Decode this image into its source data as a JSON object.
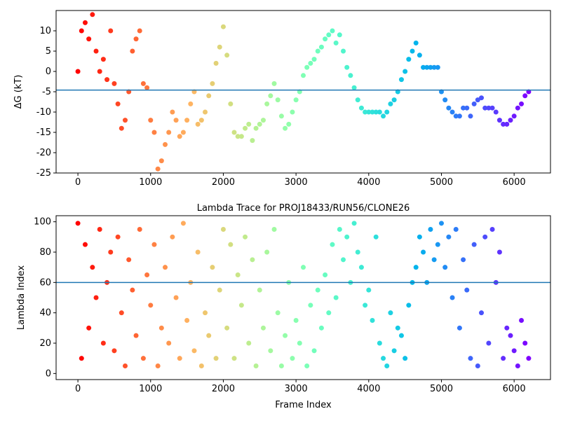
{
  "chart_data": [
    {
      "type": "scatter",
      "y_label": "ΔG (kT)",
      "colormap": "rainbow_r",
      "hline": -4.6,
      "hline_color": "#1f77b4",
      "xlim": [
        -300,
        6500
      ],
      "xticks": [
        0,
        1000,
        2000,
        3000,
        4000,
        5000,
        6000
      ],
      "ylim": [
        -25,
        15
      ],
      "yticks": [
        -25,
        -20,
        -15,
        -10,
        -5,
        0,
        5,
        10
      ],
      "x": [
        0,
        50,
        100,
        150,
        200,
        250,
        300,
        350,
        400,
        450,
        500,
        550,
        600,
        650,
        700,
        750,
        800,
        850,
        900,
        950,
        1000,
        1050,
        1100,
        1150,
        1200,
        1250,
        1300,
        1350,
        1400,
        1450,
        1500,
        1550,
        1600,
        1650,
        1700,
        1750,
        1800,
        1850,
        1900,
        1950,
        2000,
        2050,
        2100,
        2150,
        2200,
        2250,
        2300,
        2350,
        2400,
        2450,
        2500,
        2550,
        2600,
        2650,
        2700,
        2750,
        2800,
        2850,
        2900,
        2950,
        3000,
        3050,
        3100,
        3150,
        3200,
        3250,
        3300,
        3350,
        3400,
        3450,
        3500,
        3550,
        3600,
        3650,
        3700,
        3750,
        3800,
        3850,
        3900,
        3950,
        4000,
        4050,
        4100,
        4150,
        4200,
        4250,
        4300,
        4350,
        4400,
        4450,
        4500,
        4550,
        4600,
        4650,
        4700,
        4750,
        4800,
        4850,
        4900,
        4950,
        5000,
        5050,
        5100,
        5150,
        5200,
        5250,
        5300,
        5350,
        5400,
        5450,
        5500,
        5550,
        5600,
        5650,
        5700,
        5750,
        5800,
        5850,
        5900,
        5950,
        6000,
        6050,
        6100,
        6150,
        6200
      ],
      "values": [
        0,
        10,
        12,
        8,
        14,
        5,
        0,
        3,
        -2,
        10,
        -3,
        -8,
        -14,
        -12,
        -5,
        5,
        8,
        10,
        -3,
        -4,
        -12,
        -15,
        -24,
        -22,
        -18,
        -15,
        -10,
        -12,
        -16,
        -15,
        -12,
        -8,
        -5,
        -13,
        -12,
        -10,
        -6,
        -3,
        2,
        6,
        11,
        4,
        -8,
        -15,
        -16,
        -16,
        -14,
        -13,
        -17,
        -14,
        -13,
        -12,
        -8,
        -6,
        -3,
        -7,
        -11,
        -14,
        -13,
        -10,
        -7,
        -5,
        -1,
        1,
        2,
        3,
        5,
        6,
        8,
        9,
        10,
        7,
        9,
        5,
        1,
        -1,
        -4,
        -7,
        -9,
        -10,
        -10,
        -10,
        -10,
        -10,
        -11,
        -10,
        -8,
        -7,
        -5,
        -2,
        0,
        3,
        5,
        7,
        4,
        1,
        1,
        1,
        1,
        1,
        -5,
        -7,
        -9,
        -10,
        -11,
        -11,
        -9,
        -9,
        -11,
        -8,
        -7,
        -6.5,
        -9,
        -9,
        -9,
        -10,
        -12,
        -13,
        -13,
        -12,
        -11,
        -9,
        -8,
        -6,
        -5
      ]
    },
    {
      "type": "scatter",
      "title": "Lambda Trace for PROJ18433/RUN56/CLONE26",
      "x_label": "Frame Index",
      "y_label": "Lambda Index",
      "colormap": "rainbow_r",
      "hline": 60,
      "hline_color": "#1f77b4",
      "xlim": [
        -300,
        6500
      ],
      "xticks": [
        0,
        1000,
        2000,
        3000,
        4000,
        5000,
        6000
      ],
      "ylim": [
        -4,
        104
      ],
      "yticks": [
        0,
        20,
        40,
        60,
        80,
        100
      ],
      "x": [
        0,
        50,
        100,
        150,
        200,
        250,
        300,
        350,
        400,
        450,
        500,
        550,
        600,
        650,
        700,
        750,
        800,
        850,
        900,
        950,
        1000,
        1050,
        1100,
        1150,
        1200,
        1250,
        1300,
        1350,
        1400,
        1450,
        1500,
        1550,
        1600,
        1650,
        1700,
        1750,
        1800,
        1850,
        1900,
        1950,
        2000,
        2050,
        2100,
        2150,
        2200,
        2250,
        2300,
        2350,
        2400,
        2450,
        2500,
        2550,
        2600,
        2650,
        2700,
        2750,
        2800,
        2850,
        2900,
        2950,
        3000,
        3050,
        3100,
        3150,
        3200,
        3250,
        3300,
        3350,
        3400,
        3450,
        3500,
        3550,
        3600,
        3650,
        3700,
        3750,
        3800,
        3850,
        3900,
        3950,
        4000,
        4050,
        4100,
        4150,
        4200,
        4250,
        4300,
        4350,
        4400,
        4450,
        4500,
        4550,
        4600,
        4650,
        4700,
        4750,
        4800,
        4850,
        4900,
        4950,
        5000,
        5050,
        5100,
        5150,
        5200,
        5250,
        5300,
        5350,
        5400,
        5450,
        5500,
        5550,
        5600,
        5650,
        5700,
        5750,
        5800,
        5850,
        5900,
        5950,
        6000,
        6050,
        6100,
        6150,
        6200
      ],
      "values": [
        99,
        10,
        85,
        30,
        70,
        50,
        95,
        20,
        60,
        80,
        15,
        90,
        40,
        5,
        75,
        55,
        25,
        95,
        10,
        65,
        45,
        85,
        5,
        30,
        70,
        20,
        90,
        50,
        10,
        99,
        35,
        60,
        15,
        80,
        5,
        40,
        25,
        70,
        10,
        55,
        95,
        30,
        85,
        10,
        65,
        45,
        90,
        20,
        75,
        5,
        55,
        30,
        80,
        15,
        95,
        40,
        5,
        25,
        60,
        10,
        35,
        20,
        70,
        5,
        45,
        15,
        55,
        30,
        65,
        40,
        85,
        50,
        95,
        75,
        90,
        60,
        99,
        80,
        70,
        45,
        55,
        35,
        90,
        20,
        10,
        5,
        40,
        15,
        30,
        25,
        10,
        45,
        60,
        70,
        90,
        80,
        60,
        95,
        75,
        85,
        99,
        70,
        90,
        50,
        95,
        30,
        75,
        55,
        10,
        85,
        5,
        40,
        90,
        20,
        95,
        60,
        80,
        10,
        30,
        25,
        15,
        5,
        35,
        20,
        10
      ]
    }
  ]
}
